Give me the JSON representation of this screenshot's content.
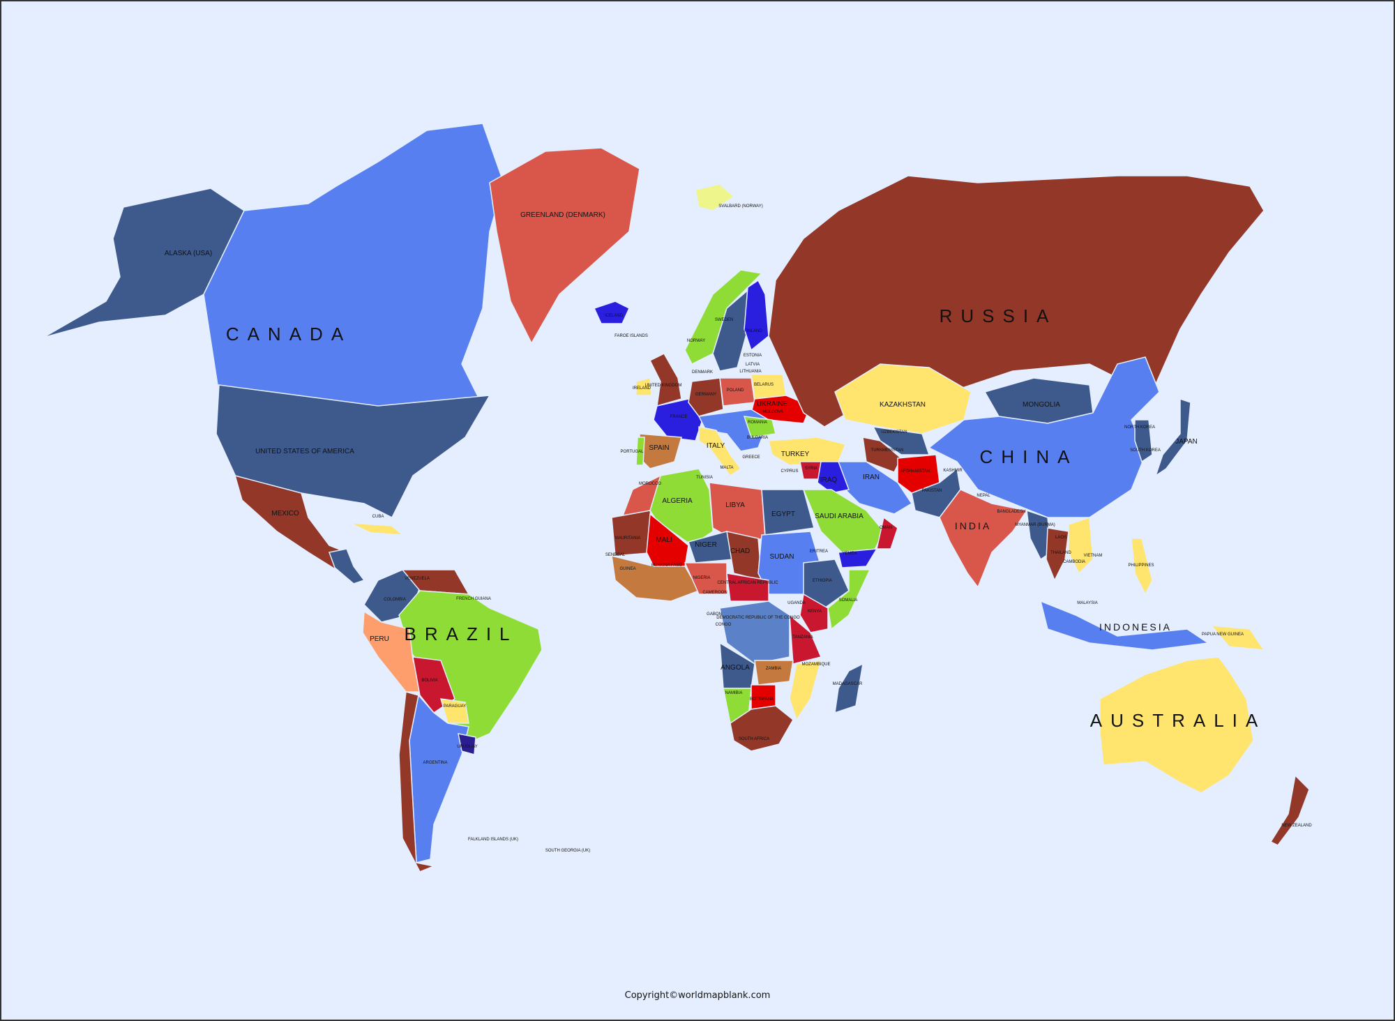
{
  "map": {
    "ocean_color": "#e4eefe",
    "colors": {
      "alaska": "#3e5a8c",
      "canada": "#577ff0",
      "usa": "#3e5a8c",
      "mexico": "#933728",
      "greenland": "#d9564a",
      "iceland": "#2b1fdf",
      "svalbard": "#eef58a",
      "central_america": "#3e5a8c",
      "cuba": "#ffe46e",
      "colombia": "#3e5a8c",
      "venezuela": "#933728",
      "brazil": "#8fdc37",
      "peru": "#fe9e6c",
      "bolivia": "#c8172f",
      "argentina": "#577ff0",
      "chile": "#933728",
      "paraguay": "#ffe46e",
      "uruguay": "#2b1f8f",
      "scandinavia": "#3e5a8c",
      "norway": "#8fdc37",
      "finland": "#2b1fdf",
      "uk": "#933728",
      "ireland": "#ffe46e",
      "france": "#2b1fdf",
      "spain": "#c47a3f",
      "portugal": "#8fdc37",
      "germany": "#933728",
      "poland": "#d9564a",
      "italy": "#ffe46e",
      "ukraine": "#e50000",
      "belarus": "#ffe46e",
      "balkans": "#577ff0",
      "romania": "#8fdc37",
      "russia": "#933728",
      "kazakhstan": "#ffe46e",
      "mongolia": "#3e5a8c",
      "china": "#577ff0",
      "central_asia": "#3e5a8c",
      "turkmenistan": "#933728",
      "afghanistan": "#e50000",
      "pakistan": "#3e5a8c",
      "india": "#d9564a",
      "iran": "#577ff0",
      "turkey": "#ffe46e",
      "iraq": "#2b1fdf",
      "syria": "#c8172f",
      "saudi": "#8fdc37",
      "oman": "#c8172f",
      "yemen": "#2b1fdf",
      "korea": "#3e5a8c",
      "japan": "#3e5a8c",
      "se_asia": "#3e5a8c",
      "thailand": "#933728",
      "vietnam": "#ffe46e",
      "indonesia": "#577ff0",
      "philippines": "#ffe46e",
      "png": "#ffe46e",
      "australia": "#ffe46e",
      "nz": "#933728",
      "morocco": "#d9564a",
      "algeria": "#8fdc37",
      "libya": "#d9564a",
      "egypt": "#3e5a8c",
      "mauritania": "#933728",
      "mali": "#e50000",
      "niger": "#3e5a8c",
      "chad": "#933728",
      "sudan": "#577ff0",
      "ethiopia": "#3e5a8c",
      "west_africa": "#c47a3f",
      "nigeria": "#d9564a",
      "car": "#c8172f",
      "drc": "#5b82c8",
      "somalia": "#8fdc37",
      "kenya": "#c8172f",
      "tanzania": "#c8172f",
      "angola": "#3e5a8c",
      "zambia": "#c47a3f",
      "namibia": "#8fdc37",
      "botswana": "#e50000",
      "south_africa": "#933728",
      "mozambique": "#ffe46e",
      "madagascar": "#3e5a8c"
    },
    "labels": {
      "russia": "RUSSIA",
      "canada": "CANADA",
      "brazil": "BRAZIL",
      "china": "CHINA",
      "australia": "AUSTRALIA",
      "alaska": "ALASKA (USA)",
      "usa": "UNITED STATES OF AMERICA",
      "mexico": "MEXICO",
      "greenland": "GREENLAND (DENMARK)",
      "iceland": "ICELAND",
      "faroe": "FAROE ISLANDS",
      "svalbard": "SVALBARD (NORWAY)",
      "kazakhstan": "KAZAKHSTAN",
      "mongolia": "MONGOLIA",
      "india": "INDIA",
      "iran": "IRAN",
      "japan": "JAPAN",
      "uzbekistan": "UZBEKISTAN",
      "turkmenistan": "TURKMENISTAN",
      "afghanistan": "AFGHANISTAN",
      "pakistan": "PAKISTAN",
      "kashmir": "KASHMIR",
      "nepal": "NEPAL",
      "bangladesh": "BANGLADESH",
      "myanmar": "MYANMAR (BURMA)",
      "laos": "LAOS",
      "north_korea": "NORTH KOREA",
      "south_korea": "SOUTH KOREA",
      "thailand": "THAILAND",
      "cambodia": "CAMBODIA",
      "vietnam": "VIETNAM",
      "malaysia": "MALAYSIA",
      "indonesia": "INDONESIA",
      "philippines": "PHILIPPINES",
      "png": "PAPUA NEW GUINEA",
      "new_zealand": "NEW ZEALAND",
      "turkey": "TURKEY",
      "syria": "SYRIA",
      "iraq": "IRAQ",
      "saudi": "SAUDI ARABIA",
      "oman": "OMAN",
      "yemen": "YEMEN",
      "spain": "SPAIN",
      "portugal": "PORTUGAL",
      "france": "FRANCE",
      "italy": "ITALY",
      "germany": "GERMANY",
      "poland": "POLAND",
      "ukraine": "UKRAINE",
      "belarus": "BELARUS",
      "sweden": "SWEDEN",
      "finland": "FINLAND",
      "norway": "NORWAY",
      "uk": "UNITED KINGDOM",
      "ireland": "IRELAND",
      "estonia": "ESTONIA",
      "latvia": "LATVIA",
      "lithuania": "LITHUANIA",
      "romania": "ROMANIA",
      "moldova": "MOLDOVA",
      "bulgaria": "BULGARIA",
      "greece": "GREECE",
      "denmark": "DENMARK",
      "cyprus": "CYPRUS",
      "malta": "MALTA",
      "tunisia": "TUNISIA",
      "morocco": "MOROCCO",
      "algeria": "ALGERIA",
      "libya": "LIBYA",
      "egypt": "EGYPT",
      "mauritania": "MAURITANIA",
      "mali": "MALI",
      "niger": "NIGER",
      "chad": "CHAD",
      "sudan": "SUDAN",
      "eritrea": "ERITREA",
      "ethiopia": "ETHIOPIA",
      "burkina": "BURKINA FASO",
      "nigeria": "NIGERIA",
      "senegal": "SENEGAL",
      "guinea": "GUINEA",
      "cameroon": "CAMEROON",
      "car": "CENTRAL AFRICAN REPUBLIC",
      "somalia": "SOMALIA",
      "uganda": "UGANDA",
      "kenya": "KENYA",
      "drc": "DEMOCRATIC REPUBLIC OF THE CONGO",
      "gabon": "GABON",
      "congo": "CONGO",
      "tanzania": "TANZANIA",
      "angola": "ANGOLA",
      "zambia": "ZAMBIA",
      "mozambique": "MOZAMBIQUE",
      "namibia": "NAMIBIA",
      "botswana": "BOTSWANA",
      "south_africa": "SOUTH AFRICA",
      "madagascar": "MADAGASCAR",
      "venezuela": "VENEZUELA",
      "colombia": "COLOMBIA",
      "french_guiana": "FRENCH GUIANA",
      "peru": "PERU",
      "bolivia": "BOLIVIA",
      "paraguay": "PARAGUAY",
      "argentina": "ARGENTINA",
      "uruguay": "URUGUAY",
      "falklands": "FALKLAND ISLANDS (UK)",
      "south_georgia": "SOUTH GEORGIA (UK)",
      "cuba": "CUBA"
    }
  },
  "footer": {
    "copyright": "Copyright©worldmapblank.com"
  }
}
